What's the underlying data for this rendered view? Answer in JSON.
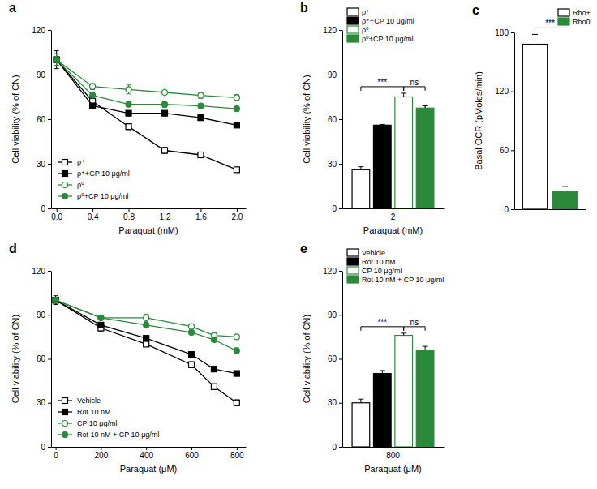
{
  "chart_data": [
    {
      "type": "line",
      "title": "a",
      "x_label": "Paraquat (mM)",
      "y_label": "Cell viability (% of CN)",
      "x": [
        0,
        0.4,
        0.8,
        1.2,
        1.6,
        2.0
      ],
      "xlim": [
        -0.06,
        2.1
      ],
      "xticks": [
        {
          "value": 0,
          "label": "0.0"
        },
        0.4,
        0.8,
        1.2,
        1.6,
        {
          "value": 2,
          "label": "2.0"
        }
      ],
      "ylim": [
        0,
        120
      ],
      "yticks": [
        0,
        30,
        60,
        90,
        120
      ],
      "legend": "lower left",
      "series": [
        {
          "name": "ρ⁺",
          "color": "#000000",
          "marker": "square-open",
          "values": [
            100,
            72,
            55,
            39,
            36,
            26
          ],
          "errors": [
            6,
            1.5,
            2,
            2,
            1.5,
            1.5
          ]
        },
        {
          "name": "ρ⁺+CP 10 μg/ml",
          "color": "#000000",
          "marker": "square-filled",
          "values": [
            100,
            69,
            64,
            64,
            61,
            56
          ],
          "errors": [
            4,
            1,
            1,
            1,
            1,
            1
          ]
        },
        {
          "name": "ρ⁰",
          "color": "#2a8a3a",
          "marker": "circle-open",
          "values": [
            100,
            82,
            80,
            78,
            76,
            74.5
          ],
          "errors": [
            4,
            2,
            3,
            3,
            2,
            2
          ]
        },
        {
          "name": "ρ⁰+CP 10 μg/ml",
          "color": "#2a8a3a",
          "marker": "circle-filled",
          "values": [
            100,
            76,
            70,
            70,
            69,
            67
          ],
          "errors": [
            4,
            1.5,
            1.5,
            2,
            1.5,
            1.5
          ]
        }
      ]
    },
    {
      "type": "bar",
      "title": "b",
      "x_label": "Paraquat (mM)",
      "y_label": "Cell viability (% of CN)",
      "categories": [
        "2"
      ],
      "ylim": [
        0,
        120
      ],
      "yticks": [
        0,
        30,
        60,
        90,
        120
      ],
      "legend": "upper left",
      "series": [
        {
          "name": "ρ⁺",
          "color": "#000000",
          "marker": "open",
          "values": [
            26
          ],
          "errors": [
            2
          ]
        },
        {
          "name": "ρ⁺+CP 10 μg/ml",
          "color": "#000000",
          "marker": "filled",
          "values": [
            56
          ],
          "errors": [
            0.5
          ]
        },
        {
          "name": "ρ⁰",
          "color": "#2a8a3a",
          "marker": "open",
          "values": [
            75
          ],
          "errors": [
            2.5
          ]
        },
        {
          "name": "ρ⁰+CP 10 μg/ml",
          "color": "#2a8a3a",
          "marker": "filled",
          "values": [
            67.5
          ],
          "errors": [
            1.5
          ]
        }
      ],
      "annotations": [
        {
          "text": "***",
          "between": [
            0,
            2
          ]
        },
        {
          "text": "ns",
          "between": [
            2,
            3
          ]
        }
      ]
    },
    {
      "type": "bar",
      "title": "c",
      "y_label": "Basal OCR (pMoles/min)",
      "categories": [
        null
      ],
      "ylim": [
        0,
        180
      ],
      "yticks": [
        0,
        60,
        120,
        180
      ],
      "legend": "upper right",
      "series": [
        {
          "name": "Rho+",
          "color": "#000000",
          "marker": "open",
          "values": [
            168
          ],
          "errors": [
            10
          ]
        },
        {
          "name": "Rho0",
          "color": "#2a8a3a",
          "marker": "filled",
          "values": [
            18
          ],
          "errors": [
            5
          ]
        }
      ],
      "annotations": [
        {
          "text": "***",
          "between": [
            0,
            1
          ]
        }
      ]
    },
    {
      "type": "line",
      "title": "d",
      "x_label": "Paraquat (μM)",
      "y_label": "Cell viability (% of CN)",
      "x": [
        0,
        200,
        400,
        600,
        700,
        800
      ],
      "xlim": [
        -20,
        840
      ],
      "xticks": [
        0,
        200,
        400,
        600,
        800
      ],
      "ylim": [
        0,
        120
      ],
      "yticks": [
        0,
        30,
        60,
        90,
        120
      ],
      "legend": "lower left",
      "series": [
        {
          "name": "Vehicle",
          "color": "#000000",
          "marker": "square-open",
          "values": [
            100,
            81,
            70,
            56,
            41,
            30
          ],
          "errors": [
            3,
            2,
            1.5,
            2,
            2,
            2
          ]
        },
        {
          "name": "Rot 10 nM",
          "color": "#000000",
          "marker": "square-filled",
          "values": [
            100,
            83,
            74,
            63,
            53,
            50
          ],
          "errors": [
            2,
            1,
            1,
            1,
            1.5,
            1.5
          ]
        },
        {
          "name": "CP 10 μg/ml",
          "color": "#2a8a3a",
          "marker": "circle-open",
          "values": [
            100,
            88,
            88,
            82,
            76,
            75
          ],
          "errors": [
            2,
            1.5,
            2.5,
            1.5,
            1.5,
            1.5
          ]
        },
        {
          "name": "Rot 10 nM + CP 10 μg/ml",
          "color": "#2a8a3a",
          "marker": "circle-filled",
          "values": [
            100,
            88,
            83,
            78,
            73,
            65.5
          ],
          "errors": [
            2,
            1.5,
            1.5,
            1.5,
            1.5,
            2
          ]
        }
      ]
    },
    {
      "type": "bar",
      "title": "e",
      "x_label": "Paraquat (μM)",
      "y_label": "Cell viability (% of CN)",
      "categories": [
        "800"
      ],
      "ylim": [
        0,
        120
      ],
      "yticks": [
        0,
        30,
        60,
        90,
        120
      ],
      "legend": "upper left",
      "series": [
        {
          "name": "Vehicle",
          "color": "#000000",
          "marker": "open",
          "values": [
            30
          ],
          "errors": [
            2.5
          ]
        },
        {
          "name": "Rot 10 nM",
          "color": "#000000",
          "marker": "filled",
          "values": [
            50
          ],
          "errors": [
            2
          ]
        },
        {
          "name": "CP 10 μg/ml",
          "color": "#2a8a3a",
          "marker": "open",
          "values": [
            76
          ],
          "errors": [
            1.5
          ]
        },
        {
          "name": "Rot 10 nM + CP 10 μg/ml",
          "color": "#2a8a3a",
          "marker": "filled",
          "values": [
            66
          ],
          "errors": [
            2.5
          ]
        }
      ],
      "annotations": [
        {
          "text": "***",
          "between": [
            0,
            2
          ]
        },
        {
          "text": "ns",
          "between": [
            2,
            3
          ]
        }
      ]
    }
  ]
}
